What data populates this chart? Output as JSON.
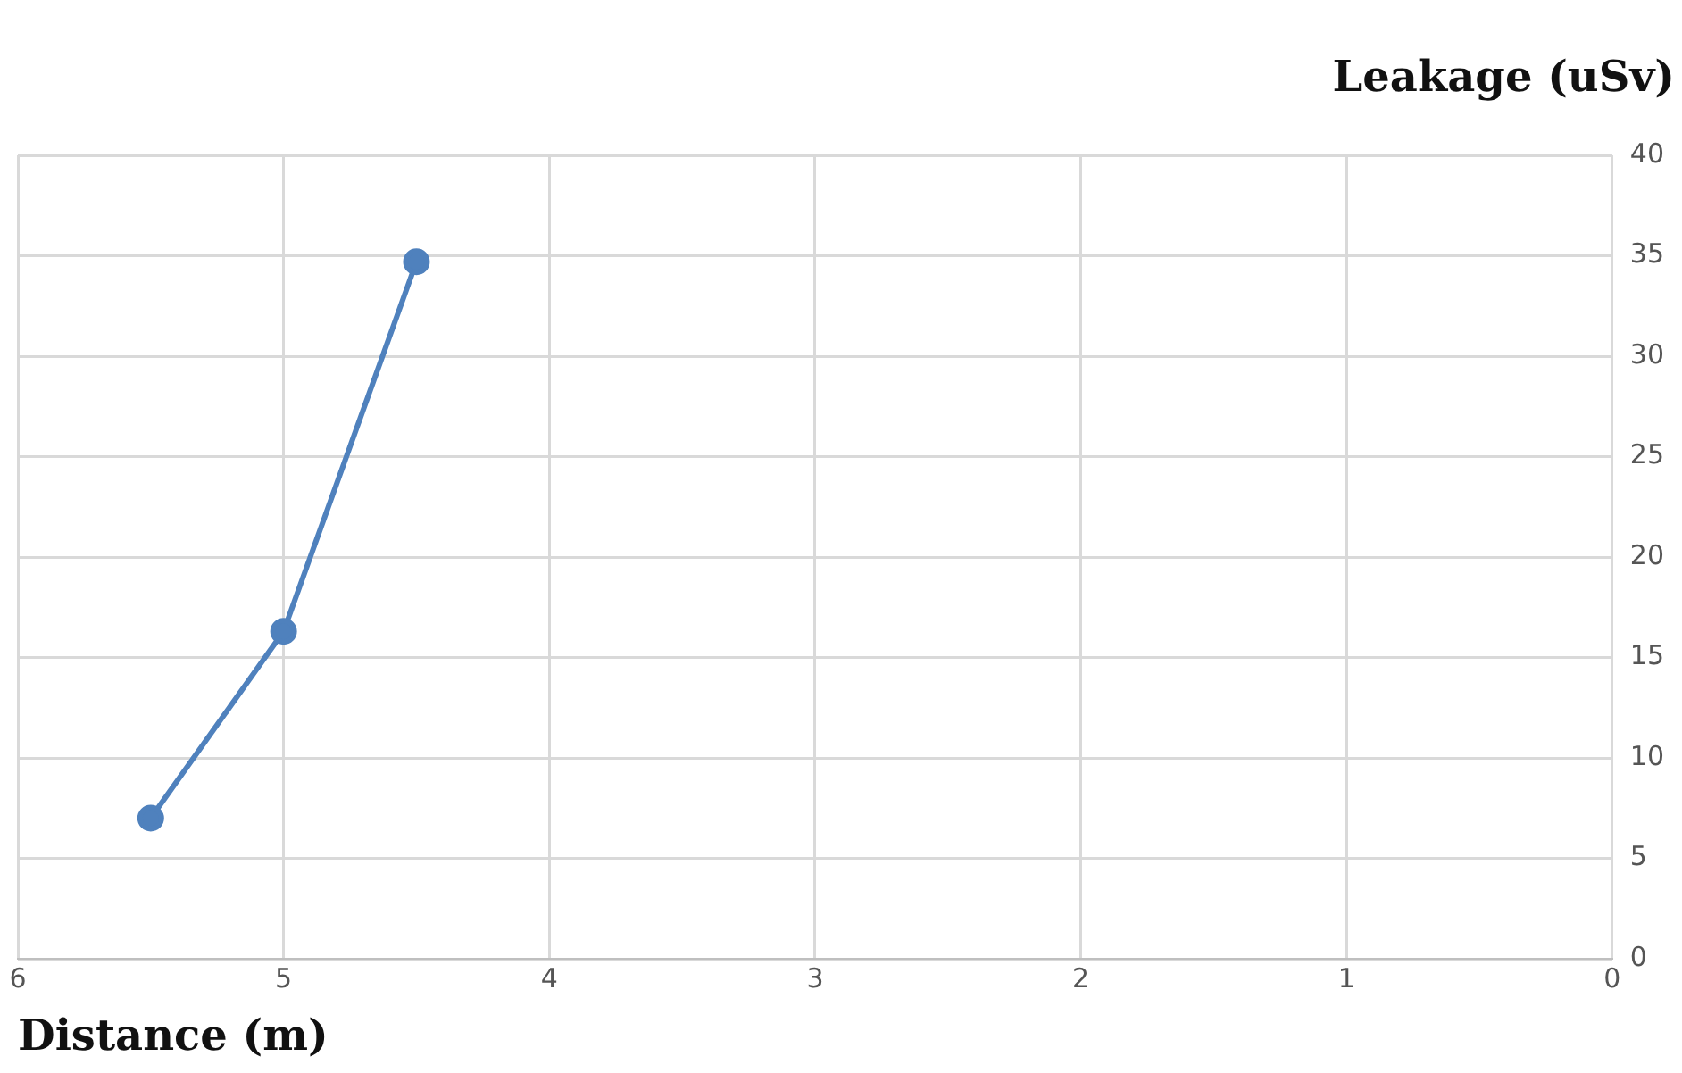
{
  "chart_data": {
    "type": "line",
    "xlabel": "Distance (m)",
    "ylabel": "Leakage (uSv)",
    "x": [
      5.5,
      5,
      4.5
    ],
    "series": [
      {
        "color": "#4f81bd",
        "values": [
          7,
          16.3,
          34.7
        ]
      }
    ],
    "xlim": [
      6,
      0
    ],
    "xticks": [
      6,
      5,
      4,
      3,
      2,
      1,
      0
    ],
    "ylim": [
      0,
      40
    ],
    "yticks": [
      0,
      5,
      10,
      15,
      20,
      25,
      30,
      35,
      40
    ],
    "grid": true,
    "legend": false,
    "marker": "circle",
    "line_style": "solid"
  }
}
